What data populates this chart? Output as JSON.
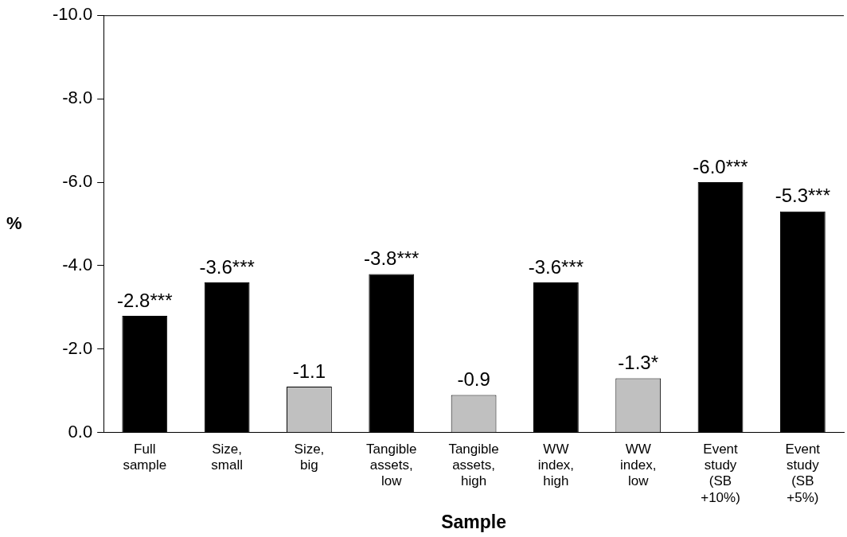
{
  "chart_data": {
    "type": "bar",
    "xlabel": "Sample",
    "ylabel": "%",
    "categories": [
      "Full\nsample",
      "Size,\nsmall",
      "Size,\nbig",
      "Tangible\nassets,\nlow",
      "Tangible\nassets,\nhigh",
      "WW\nindex,\nhigh",
      "WW\nindex,\nlow",
      "Event\nstudy\n(SB\n+10%)",
      "Event\nstudy\n(SB\n+5%)"
    ],
    "values": [
      -2.8,
      -3.6,
      -1.1,
      -3.8,
      -0.9,
      -3.6,
      -1.3,
      -6.0,
      -5.3
    ],
    "colors": [
      "#000000",
      "#000000",
      "#c0c0c0",
      "#000000",
      "#c0c0c0",
      "#000000",
      "#c0c0c0",
      "#000000",
      "#000000"
    ],
    "value_labels": [
      "-2.8***",
      "-3.6***",
      "-1.1",
      "-3.8***",
      "-0.9",
      "-3.6***",
      "-1.3*",
      "-6.0***",
      "-5.3***"
    ],
    "ylim": [
      0,
      -10
    ],
    "yticks": [
      {
        "value": 0,
        "label": "0.0"
      },
      {
        "value": -2,
        "label": "-2.0"
      },
      {
        "value": -4,
        "label": "-4.0"
      },
      {
        "value": -6,
        "label": "-6.0"
      },
      {
        "value": -8,
        "label": "-8.0"
      },
      {
        "value": -10,
        "label": "-10.0"
      }
    ],
    "grid": false,
    "legend": false
  }
}
